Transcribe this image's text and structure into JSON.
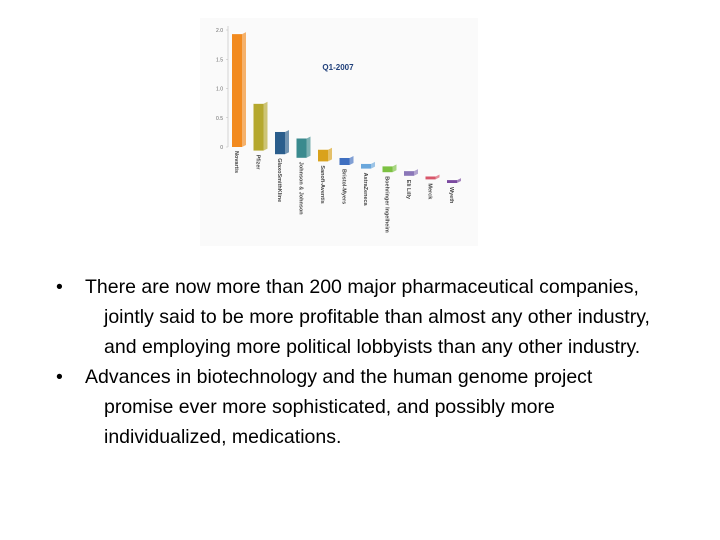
{
  "chart_data": {
    "type": "bar",
    "title": "Q1-2007",
    "categories": [
      "Novartis",
      "Pfizer",
      "GlaxoSmithKline",
      "Johnson & Johnson",
      "Sanofi-Aventis",
      "Bristol-Myers",
      "AstraZeneca",
      "Boehringer Ingelheim",
      "Eli Lilly",
      "Merck",
      "Wyeth"
    ],
    "values": [
      1.93,
      0.8,
      0.38,
      0.33,
      0.2,
      0.12,
      0.08,
      0.1,
      0.08,
      0.05,
      0.05
    ],
    "colors": [
      "#f28a1e",
      "#b5a82e",
      "#2a5d8c",
      "#3a8a8e",
      "#d9a21c",
      "#3f6fc0",
      "#6aa7dc",
      "#7cc142",
      "#8a76b8",
      "#d8566a",
      "#7b4aa0"
    ],
    "ylim": [
      0,
      2.0
    ],
    "yticks": [
      0,
      0.5,
      {
        "value": 1.0,
        "label": "1.0"
      },
      1.5,
      {
        "value": 2.0,
        "label": "2.0"
      }
    ]
  },
  "bullets": [
    "There are now more than 200 major pharmaceutical companies, jointly said to be more profitable than almost any other industry, and employing more political lobbyists than any other industry.",
    "Advances in biotechnology and the human genome project promise ever more sophisticated, and possibly more individualized, medications."
  ]
}
